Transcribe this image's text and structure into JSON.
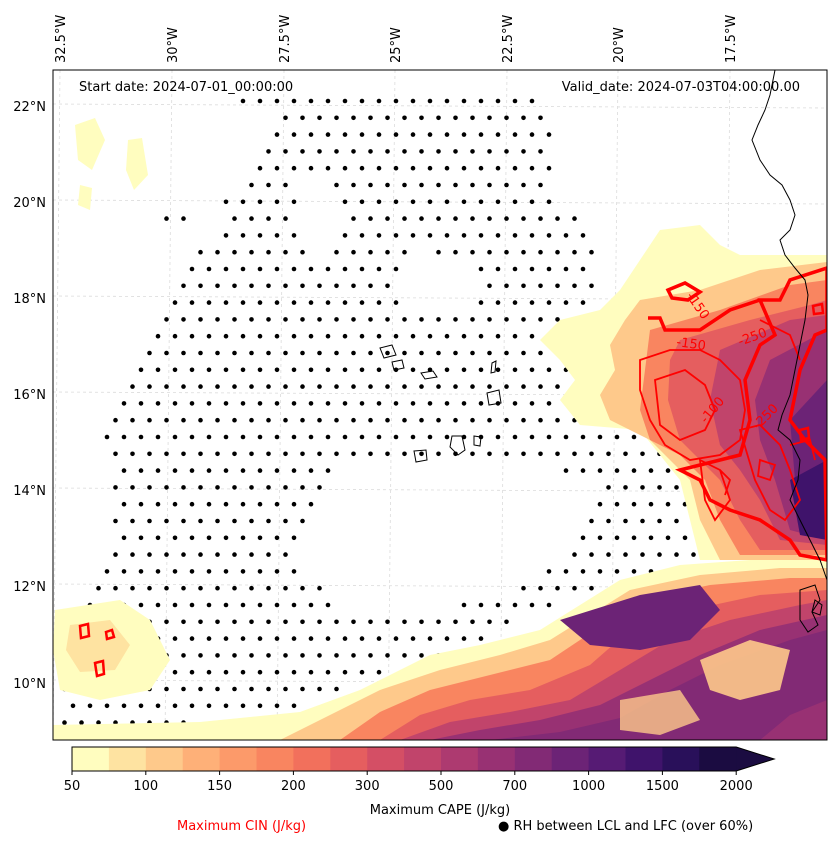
{
  "map": {
    "start_date": "Start date: 2024-07-01_00:00:00",
    "valid_date": "Valid_date: 2024-07-03T04:00:00.00",
    "lon_labels": [
      "32.5°W",
      "30°W",
      "27.5°W",
      "25°W",
      "22.5°W",
      "20°W",
      "17.5°W"
    ],
    "lat_labels": [
      "22°N",
      "20°N",
      "18°N",
      "16°N",
      "14°N",
      "12°N",
      "10°N"
    ],
    "cin_contour_labels": [
      "-150",
      "-150",
      "-250",
      "-100",
      "-250"
    ]
  },
  "colorbar": {
    "ticks": [
      "50",
      "100",
      "150",
      "200",
      "300",
      "500",
      "700",
      "1000",
      "1500",
      "2000"
    ],
    "label": "Maximum CAPE (J/kg)",
    "colors": [
      "#fffdbf",
      "#fee3a1",
      "#fec98b",
      "#feb078",
      "#fc9a6a",
      "#f98560",
      "#f2705c",
      "#e55e5f",
      "#d44f65",
      "#c1446b",
      "#ad3a70",
      "#983173",
      "#822a75",
      "#6c2376",
      "#561b74",
      "#3f136b",
      "#29105a",
      "#1b0c41"
    ]
  },
  "legend": {
    "cin_label": "Maximum CIN (J/kg)",
    "cin_color": "#ff0000",
    "rh_label": "RH between LCL and LFC (over 60%)"
  }
}
